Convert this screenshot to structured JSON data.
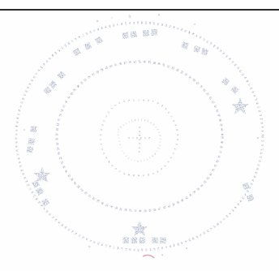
{
  "document": {
    "seal": {
      "description_name": "official-stamp",
      "outer_text": "",
      "ink_color": "#5a6a9a",
      "faded": true
    },
    "rule": {
      "color": "#2b2b2b"
    }
  }
}
